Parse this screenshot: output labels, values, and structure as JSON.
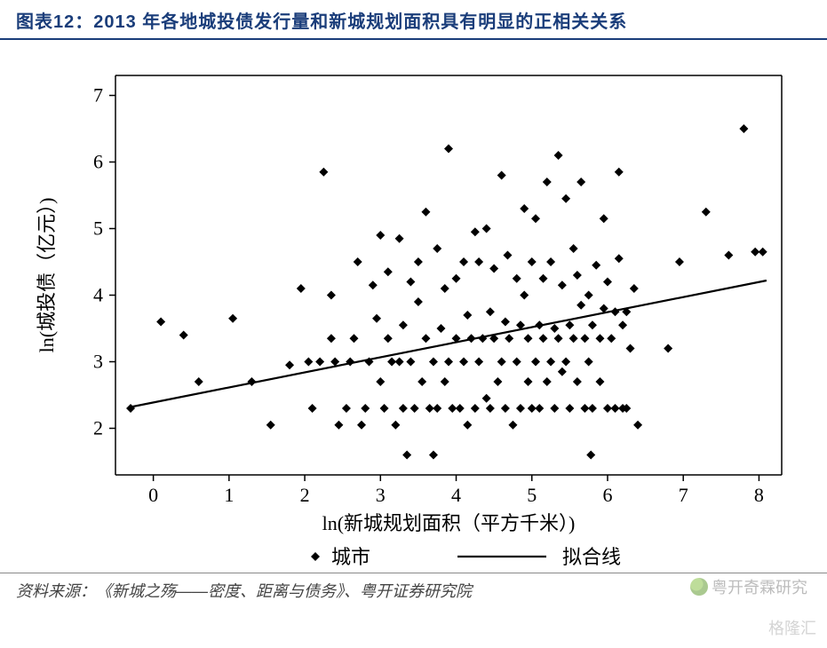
{
  "header": {
    "prefix": "图表12：",
    "title": "2013 年各地城投债发行量和新城规划面积具有明显的正相关关系"
  },
  "footer": {
    "source_label": "资料来源：",
    "source_text": "《新城之殇——密度、距离与债务》、粤开证券研究院"
  },
  "watermark1": "粤开奇霖研究",
  "watermark2": "格隆汇",
  "chart": {
    "type": "scatter",
    "background_color": "#ffffff",
    "xlabel": "ln(新城规划面积（平方千米）)",
    "ylabel": "ln(城投债（亿元）)",
    "label_fontsize": 22,
    "tick_fontsize": 22,
    "axis_color": "#000000",
    "tick_color": "#000000",
    "marker_color": "#000000",
    "marker_shape": "diamond",
    "marker_size": 5,
    "line_color": "#000000",
    "line_width": 2.2,
    "xlim": [
      -0.5,
      8.3
    ],
    "ylim": [
      1.3,
      7.3
    ],
    "xticks": [
      0,
      1,
      2,
      3,
      4,
      5,
      6,
      7,
      8
    ],
    "yticks": [
      2,
      3,
      4,
      5,
      6,
      7
    ],
    "fit_line": {
      "x1": -0.3,
      "y1": 2.32,
      "x2": 8.1,
      "y2": 4.22
    },
    "legend": {
      "items": [
        {
          "type": "marker",
          "label": "城市"
        },
        {
          "type": "line",
          "label": "拟合线"
        }
      ],
      "fontsize": 22
    },
    "points": [
      [
        -0.3,
        2.3
      ],
      [
        0.1,
        3.6
      ],
      [
        0.4,
        3.4
      ],
      [
        0.6,
        2.7
      ],
      [
        1.05,
        3.65
      ],
      [
        1.3,
        2.7
      ],
      [
        1.55,
        2.05
      ],
      [
        1.8,
        2.95
      ],
      [
        1.95,
        4.1
      ],
      [
        2.05,
        3.0
      ],
      [
        2.1,
        2.3
      ],
      [
        2.2,
        3.0
      ],
      [
        2.25,
        5.85
      ],
      [
        2.35,
        3.35
      ],
      [
        2.35,
        4.0
      ],
      [
        2.4,
        3.0
      ],
      [
        2.45,
        2.05
      ],
      [
        2.55,
        2.3
      ],
      [
        2.6,
        3.0
      ],
      [
        2.65,
        3.35
      ],
      [
        2.7,
        4.5
      ],
      [
        2.75,
        2.05
      ],
      [
        2.8,
        2.3
      ],
      [
        2.85,
        3.0
      ],
      [
        2.9,
        4.15
      ],
      [
        2.95,
        3.65
      ],
      [
        3.0,
        2.7
      ],
      [
        3.0,
        4.9
      ],
      [
        3.05,
        2.3
      ],
      [
        3.1,
        3.35
      ],
      [
        3.1,
        4.35
      ],
      [
        3.15,
        3.0
      ],
      [
        3.2,
        2.05
      ],
      [
        3.25,
        3.0
      ],
      [
        3.25,
        4.85
      ],
      [
        3.3,
        2.3
      ],
      [
        3.3,
        3.55
      ],
      [
        3.35,
        1.6
      ],
      [
        3.4,
        3.0
      ],
      [
        3.4,
        4.2
      ],
      [
        3.45,
        2.3
      ],
      [
        3.5,
        3.9
      ],
      [
        3.5,
        4.5
      ],
      [
        3.55,
        2.7
      ],
      [
        3.6,
        3.35
      ],
      [
        3.6,
        5.25
      ],
      [
        3.65,
        2.3
      ],
      [
        3.7,
        1.6
      ],
      [
        3.7,
        3.0
      ],
      [
        3.75,
        4.7
      ],
      [
        3.75,
        2.3
      ],
      [
        3.8,
        3.5
      ],
      [
        3.85,
        2.7
      ],
      [
        3.85,
        4.1
      ],
      [
        3.9,
        3.0
      ],
      [
        3.9,
        6.2
      ],
      [
        3.95,
        2.3
      ],
      [
        4.0,
        3.35
      ],
      [
        4.0,
        4.25
      ],
      [
        4.05,
        2.3
      ],
      [
        4.1,
        3.0
      ],
      [
        4.1,
        4.5
      ],
      [
        4.15,
        3.7
      ],
      [
        4.15,
        2.05
      ],
      [
        4.2,
        3.35
      ],
      [
        4.25,
        4.95
      ],
      [
        4.25,
        2.3
      ],
      [
        4.3,
        3.0
      ],
      [
        4.3,
        4.5
      ],
      [
        4.35,
        3.35
      ],
      [
        4.4,
        2.45
      ],
      [
        4.4,
        5.0
      ],
      [
        4.45,
        3.75
      ],
      [
        4.45,
        2.3
      ],
      [
        4.5,
        3.35
      ],
      [
        4.5,
        4.4
      ],
      [
        4.55,
        2.7
      ],
      [
        4.6,
        3.0
      ],
      [
        4.6,
        5.8
      ],
      [
        4.65,
        3.6
      ],
      [
        4.65,
        2.3
      ],
      [
        4.68,
        4.6
      ],
      [
        4.7,
        3.35
      ],
      [
        4.75,
        2.05
      ],
      [
        4.8,
        4.25
      ],
      [
        4.8,
        3.0
      ],
      [
        4.85,
        2.3
      ],
      [
        4.85,
        3.55
      ],
      [
        4.9,
        5.3
      ],
      [
        4.9,
        4.0
      ],
      [
        4.95,
        2.7
      ],
      [
        4.95,
        3.35
      ],
      [
        5.0,
        2.3
      ],
      [
        5.0,
        4.5
      ],
      [
        5.05,
        3.0
      ],
      [
        5.05,
        5.15
      ],
      [
        5.1,
        3.55
      ],
      [
        5.1,
        2.3
      ],
      [
        5.15,
        4.25
      ],
      [
        5.15,
        3.35
      ],
      [
        5.2,
        2.7
      ],
      [
        5.2,
        5.7
      ],
      [
        5.25,
        3.0
      ],
      [
        5.25,
        4.5
      ],
      [
        5.3,
        3.5
      ],
      [
        5.3,
        2.3
      ],
      [
        5.35,
        6.1
      ],
      [
        5.35,
        3.35
      ],
      [
        5.4,
        2.85
      ],
      [
        5.4,
        4.15
      ],
      [
        5.45,
        3.0
      ],
      [
        5.45,
        5.45
      ],
      [
        5.5,
        3.55
      ],
      [
        5.5,
        2.3
      ],
      [
        5.55,
        4.7
      ],
      [
        5.55,
        3.35
      ],
      [
        5.6,
        2.7
      ],
      [
        5.6,
        4.3
      ],
      [
        5.65,
        3.85
      ],
      [
        5.65,
        5.7
      ],
      [
        5.7,
        3.35
      ],
      [
        5.7,
        2.3
      ],
      [
        5.75,
        4.0
      ],
      [
        5.75,
        3.0
      ],
      [
        5.78,
        1.6
      ],
      [
        5.8,
        3.55
      ],
      [
        5.8,
        2.3
      ],
      [
        5.85,
        4.45
      ],
      [
        5.9,
        3.35
      ],
      [
        5.9,
        2.7
      ],
      [
        5.95,
        3.8
      ],
      [
        5.95,
        5.15
      ],
      [
        6.0,
        2.3
      ],
      [
        6.0,
        4.2
      ],
      [
        6.05,
        3.35
      ],
      [
        6.1,
        3.75
      ],
      [
        6.1,
        2.3
      ],
      [
        6.15,
        5.85
      ],
      [
        6.15,
        4.55
      ],
      [
        6.2,
        3.55
      ],
      [
        6.2,
        2.3
      ],
      [
        6.25,
        3.75
      ],
      [
        6.25,
        2.3
      ],
      [
        6.3,
        3.2
      ],
      [
        6.35,
        4.1
      ],
      [
        6.4,
        2.05
      ],
      [
        6.8,
        3.2
      ],
      [
        6.95,
        4.5
      ],
      [
        7.3,
        5.25
      ],
      [
        7.6,
        4.6
      ],
      [
        7.8,
        6.5
      ],
      [
        7.95,
        4.65
      ],
      [
        8.05,
        4.65
      ]
    ]
  }
}
